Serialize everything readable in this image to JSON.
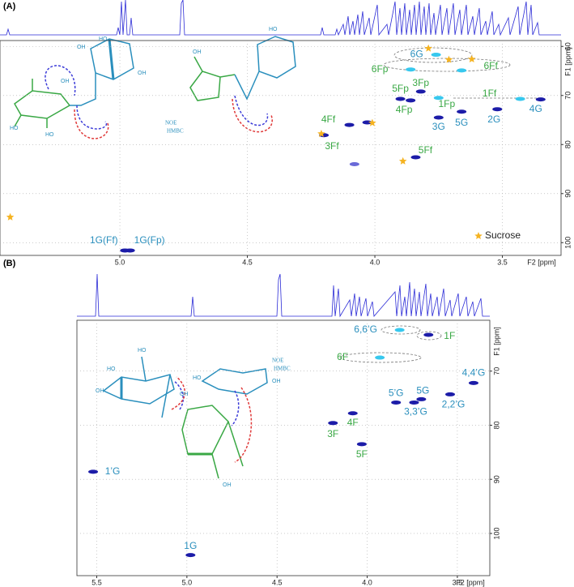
{
  "chart_data": [
    {
      "type": "scatter",
      "title": "(A)",
      "xlabel": "F2 [ppm]",
      "ylabel": "F1 [ppm]",
      "xlim": [
        5.47,
        3.27
      ],
      "ylim": [
        58.8,
        102.6
      ],
      "xticks": [
        {
          "value": 5,
          "label": "5.0"
        },
        4.5,
        {
          "value": 4,
          "label": "4.0"
        },
        3.5
      ],
      "yticks": [
        60,
        70,
        80,
        90,
        100
      ],
      "grid": true,
      "legend": "lower right",
      "peaks": [
        {
          "x": 4.98,
          "y": 101.6,
          "label": "1G(Ff)",
          "color": "#1c1ca8",
          "label_color": "#2a8fbd"
        },
        {
          "x": 4.96,
          "y": 101.6,
          "label": "1G(Fp)",
          "color": "#1c1ca8",
          "label_color": "#2a8fbd"
        },
        {
          "x": 4.1,
          "y": 76.0,
          "label": "4Ff",
          "color": "#1c1ca8",
          "label_color": "#3aa845"
        },
        {
          "x": 4.2,
          "y": 78.1,
          "label": "3Ff",
          "color": "#1c1ca8",
          "label_color": "#3aa845"
        },
        {
          "x": 4.03,
          "y": 75.5,
          "color": "#1c1ca8"
        },
        {
          "x": 4.08,
          "y": 84.0,
          "color": "#6a6ad8"
        },
        {
          "x": 3.84,
          "y": 82.6,
          "label": "5Ff",
          "color": "#1c1ca8",
          "label_color": "#3aa845"
        },
        {
          "x": 3.9,
          "y": 70.7,
          "label": "5Fp",
          "color": "#1c1ca8",
          "label_color": "#3aa845"
        },
        {
          "x": 3.82,
          "y": 69.2,
          "label": "3Fp",
          "color": "#1c1ca8",
          "label_color": "#3aa845"
        },
        {
          "x": 3.86,
          "y": 71.0,
          "label": "4Fp",
          "color": "#1c1ca8",
          "label_color": "#3aa845"
        },
        {
          "x": 3.75,
          "y": 70.5,
          "label": "1Fp",
          "color": "#37c8ee",
          "label_color": "#3aa845"
        },
        {
          "x": 3.43,
          "y": 70.7,
          "label": "1Ff",
          "color": "#37c8ee",
          "label_color": "#3aa845"
        },
        {
          "x": 3.75,
          "y": 74.5,
          "label": "3G",
          "color": "#1c1ca8",
          "label_color": "#2a8fbd"
        },
        {
          "x": 3.66,
          "y": 73.3,
          "label": "5G",
          "color": "#1c1ca8",
          "label_color": "#2a8fbd"
        },
        {
          "x": 3.52,
          "y": 72.8,
          "label": "2G",
          "color": "#1c1ca8",
          "label_color": "#2a8fbd"
        },
        {
          "x": 3.35,
          "y": 70.8,
          "label": "4G",
          "color": "#1c1ca8",
          "label_color": "#2a8fbd"
        },
        {
          "x": 3.76,
          "y": 61.7,
          "label": "6G",
          "color": "#37c8ee",
          "label_color": "#2a8fbd"
        },
        {
          "x": 3.66,
          "y": 64.9,
          "label": "6Ff",
          "color": "#37c8ee",
          "label_color": "#3aa845"
        },
        {
          "x": 3.86,
          "y": 64.7,
          "label": "6Fp",
          "color": "#37c8ee",
          "label_color": "#3aa845"
        }
      ],
      "series": [
        {
          "name": "Sucrose",
          "color": "#f5b321",
          "marker": "star",
          "x": [
            5.43,
            3.79,
            3.71,
            3.62,
            4.01,
            4.21,
            3.89
          ],
          "y": [
            94.8,
            60.4,
            62.7,
            62.6,
            75.6,
            77.8,
            83.4
          ]
        }
      ],
      "structure_labels": [
        "OH",
        "OH",
        "HO",
        "HO",
        "OH",
        "HO",
        "OH",
        "HO",
        "NOE",
        "HMBC"
      ]
    },
    {
      "type": "scatter",
      "title": "(B)",
      "xlabel": "F2 [ppm]",
      "ylabel": "F1 [ppm]",
      "xlim": [
        5.61,
        3.32
      ],
      "ylim": [
        60.6,
        107.8
      ],
      "xticks": [
        5.5,
        {
          "value": 5,
          "label": "5.0"
        },
        4.5,
        {
          "value": 4,
          "label": "4.0"
        },
        3.5
      ],
      "yticks": [
        70,
        80,
        90,
        100
      ],
      "grid": true,
      "peaks": [
        {
          "x": 5.52,
          "y": 88.6,
          "label": "1’G",
          "color": "#1c1ca8",
          "label_color": "#2a8fbd"
        },
        {
          "x": 4.98,
          "y": 104.0,
          "label": "1G",
          "color": "#1c1ca8",
          "label_color": "#2a8fbd"
        },
        {
          "x": 4.19,
          "y": 79.6,
          "label": "3F",
          "color": "#1c1ca8",
          "label_color": "#3aa845"
        },
        {
          "x": 4.08,
          "y": 77.8,
          "label": "4F",
          "color": "#1c1ca8",
          "label_color": "#3aa845"
        },
        {
          "x": 4.03,
          "y": 83.5,
          "label": "5F",
          "color": "#1c1ca8",
          "label_color": "#3aa845"
        },
        {
          "x": 3.84,
          "y": 75.8,
          "label": "5’G",
          "color": "#1c1ca8",
          "label_color": "#2a8fbd"
        },
        {
          "x": 3.74,
          "y": 75.8,
          "label": "3,3’G",
          "color": "#1c1ca8",
          "label_color": "#2a8fbd"
        },
        {
          "x": 3.7,
          "y": 75.2,
          "label": "5G",
          "color": "#1c1ca8",
          "label_color": "#2a8fbd"
        },
        {
          "x": 3.54,
          "y": 74.3,
          "label": "2,2’G",
          "color": "#1c1ca8",
          "label_color": "#2a8fbd"
        },
        {
          "x": 3.41,
          "y": 72.2,
          "label": "4,4’G",
          "color": "#1c1ca8",
          "label_color": "#2a8fbd"
        },
        {
          "x": 3.82,
          "y": 62.4,
          "label": "6,6’G",
          "color": "#37c8ee",
          "label_color": "#2a8fbd"
        },
        {
          "x": 3.66,
          "y": 63.3,
          "label": "1F",
          "color": "#1c1ca8",
          "label_color": "#3aa845"
        },
        {
          "x": 3.93,
          "y": 67.5,
          "label": "6F",
          "color": "#37c8ee",
          "label_color": "#3aa845"
        }
      ],
      "structure_labels": [
        "OH",
        "HO",
        "HO",
        "OH",
        "HO",
        "OH",
        "OH",
        "NOE",
        "HMBC"
      ]
    }
  ]
}
